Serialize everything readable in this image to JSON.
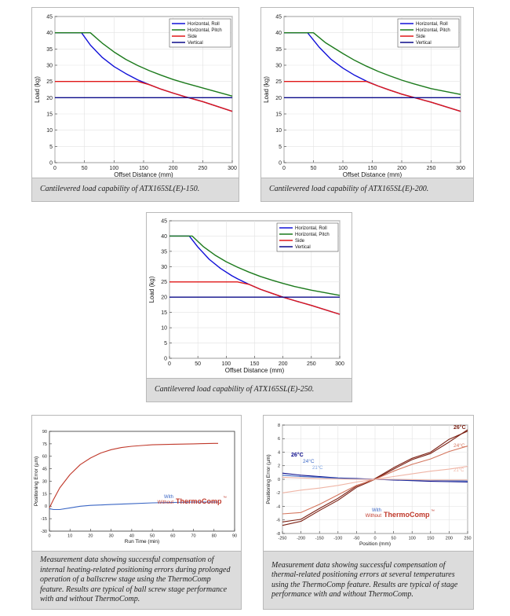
{
  "colors": {
    "horizontal_roll": "#1010d8",
    "horizontal_pitch": "#1c7a1c",
    "side": "#e01818",
    "vertical": "#0b0b8a",
    "thermo_with": "#3a66c4",
    "thermo_without": "#c0392b",
    "temp_26": "#7a1f12",
    "temp_24": "#d4765e",
    "temp_21": "#efb5a6"
  },
  "chart_data": [
    {
      "id": "c150",
      "type": "line",
      "caption": "Cantilevered load capability of ATX165SL(E)-150.",
      "xlabel": "Offset Distance (mm)",
      "ylabel": "Load (kg)",
      "xlim": [
        0,
        300
      ],
      "ylim": [
        0,
        45
      ],
      "xticks": [
        0,
        50,
        100,
        150,
        200,
        250,
        300
      ],
      "yticks": [
        0,
        5,
        10,
        15,
        20,
        25,
        30,
        35,
        40,
        45
      ],
      "grid": true,
      "legend_position": "top-right",
      "series": [
        {
          "name": "Horizontal, Roll",
          "color_key": "horizontal_roll",
          "x": [
            0,
            45,
            60,
            80,
            100,
            120,
            140,
            160,
            180,
            200,
            220,
            250,
            300
          ],
          "y": [
            40,
            40,
            36.2,
            32.4,
            29.6,
            27.4,
            25.5,
            24,
            22.6,
            21.4,
            20.3,
            18.8,
            15.8
          ]
        },
        {
          "name": "Horizontal, Pitch",
          "color_key": "horizontal_pitch",
          "x": [
            0,
            60,
            80,
            100,
            120,
            140,
            160,
            180,
            200,
            220,
            250,
            300
          ],
          "y": [
            40,
            40,
            36.8,
            34.1,
            31.8,
            29.9,
            28.3,
            26.9,
            25.6,
            24.5,
            23,
            20.5
          ]
        },
        {
          "name": "Side",
          "color_key": "side",
          "x": [
            0,
            140,
            160,
            180,
            200,
            220,
            250,
            300
          ],
          "y": [
            25,
            25,
            24,
            22.6,
            21.4,
            20.3,
            18.8,
            15.8
          ]
        },
        {
          "name": "Vertical",
          "color_key": "vertical",
          "x": [
            0,
            300
          ],
          "y": [
            20,
            20
          ]
        }
      ]
    },
    {
      "id": "c200",
      "type": "line",
      "caption": "Cantilevered load capability of ATX165SL(E)-200.",
      "xlabel": "Offset Distance (mm)",
      "ylabel": "Load (kg)",
      "xlim": [
        0,
        300
      ],
      "ylim": [
        0,
        45
      ],
      "xticks": [
        0,
        50,
        100,
        150,
        200,
        250,
        300
      ],
      "yticks": [
        0,
        5,
        10,
        15,
        20,
        25,
        30,
        35,
        40,
        45
      ],
      "grid": true,
      "legend_position": "top-right",
      "series": [
        {
          "name": "Horizontal, Roll",
          "color_key": "horizontal_roll",
          "x": [
            0,
            40,
            60,
            80,
            100,
            120,
            140,
            160,
            180,
            200,
            220,
            250,
            300
          ],
          "y": [
            40,
            40,
            35.5,
            31.8,
            29.1,
            26.9,
            25.1,
            23.6,
            22.3,
            21.1,
            20.1,
            18.6,
            15.8
          ]
        },
        {
          "name": "Horizontal, Pitch",
          "color_key": "horizontal_pitch",
          "x": [
            0,
            50,
            70,
            100,
            120,
            140,
            160,
            180,
            200,
            220,
            250,
            300
          ],
          "y": [
            40,
            40,
            37,
            33.6,
            31.5,
            29.7,
            28.1,
            26.7,
            25.4,
            24.3,
            22.8,
            21
          ]
        },
        {
          "name": "Side",
          "color_key": "side",
          "x": [
            0,
            140,
            160,
            180,
            200,
            220,
            250,
            300
          ],
          "y": [
            25,
            25,
            23.6,
            22.3,
            21.1,
            20.1,
            18.6,
            15.8
          ]
        },
        {
          "name": "Vertical",
          "color_key": "vertical",
          "x": [
            0,
            300
          ],
          "y": [
            20,
            20
          ]
        }
      ]
    },
    {
      "id": "c250",
      "type": "line",
      "caption": "Cantilevered load capability of ATX165SL(E)-250.",
      "xlabel": "Offset Distance (mm)",
      "ylabel": "Load (kg)",
      "xlim": [
        0,
        300
      ],
      "ylim": [
        0,
        45
      ],
      "xticks": [
        0,
        50,
        100,
        150,
        200,
        250,
        300
      ],
      "yticks": [
        0,
        5,
        10,
        15,
        20,
        25,
        30,
        35,
        40,
        45
      ],
      "grid": true,
      "legend_position": "top-right",
      "series": [
        {
          "name": "Horizontal, Roll",
          "color_key": "horizontal_roll",
          "x": [
            0,
            35,
            50,
            70,
            90,
            110,
            120,
            140,
            160,
            180,
            200,
            220,
            250,
            300
          ],
          "y": [
            40,
            40,
            36.4,
            32.4,
            29.4,
            27,
            26,
            24.2,
            22.6,
            21.3,
            20,
            18.9,
            17.3,
            14.4
          ]
        },
        {
          "name": "Horizontal, Pitch",
          "color_key": "horizontal_pitch",
          "x": [
            0,
            40,
            60,
            80,
            100,
            120,
            140,
            160,
            180,
            200,
            220,
            250,
            300
          ],
          "y": [
            40,
            40,
            36.5,
            33.8,
            31.6,
            29.8,
            28.2,
            26.8,
            25.6,
            24.5,
            23.5,
            22.3,
            20.6
          ]
        },
        {
          "name": "Side",
          "color_key": "side",
          "x": [
            0,
            120,
            140,
            160,
            180,
            200,
            220,
            250,
            300
          ],
          "y": [
            25,
            25,
            24.2,
            22.6,
            21.3,
            20,
            18.9,
            17.3,
            14.4
          ]
        },
        {
          "name": "Vertical",
          "color_key": "vertical",
          "x": [
            0,
            300
          ],
          "y": [
            20,
            20
          ]
        }
      ]
    },
    {
      "id": "runtime",
      "type": "line",
      "caption": "Measurement data showing successful compensation of internal heating-related positioning errors during prolonged operation of a ballscrew stage using the ThermoComp feature. Results are typical of ball screw stage performance with and without ThermoComp.",
      "xlabel": "Run Time (min)",
      "ylabel": "Positioning Error (µm)",
      "xlim": [
        0,
        90
      ],
      "ylim": [
        -30,
        90
      ],
      "xticks": [
        0,
        10,
        20,
        30,
        40,
        50,
        60,
        70,
        80,
        90
      ],
      "yticks": [
        -30,
        -15,
        0,
        15,
        30,
        45,
        60,
        75,
        90
      ],
      "grid": false,
      "annotations": {
        "with": "With",
        "without": "Without",
        "brand": "ThermoComp",
        "tm": "™"
      },
      "series": [
        {
          "name": "Without",
          "color_key": "thermo_without",
          "x": [
            0,
            2,
            5,
            10,
            15,
            20,
            25,
            30,
            35,
            40,
            45,
            50,
            60,
            70,
            80,
            82
          ],
          "y": [
            -2,
            8,
            22,
            38,
            50,
            58,
            64,
            68,
            70.5,
            72,
            73,
            73.8,
            74.5,
            75,
            75.5,
            75.5
          ]
        },
        {
          "name": "With",
          "color_key": "thermo_with",
          "x": [
            0,
            2,
            5,
            10,
            15,
            20,
            25,
            30,
            40,
            50,
            60,
            70,
            80,
            82
          ],
          "y": [
            -3,
            -4,
            -4,
            -2,
            0,
            1,
            1.5,
            2,
            3,
            4,
            4.5,
            5,
            5,
            5
          ]
        }
      ]
    },
    {
      "id": "position",
      "type": "line",
      "caption": "Measurement data showing successful compensation of thermal-related positioning errors at several temperatures using the ThermoComp feature. Results are typical of stage performance with and without ThermoComp.",
      "xlabel": "Position (mm)",
      "ylabel": "Positioning Error (µm)",
      "xlim": [
        -250,
        250
      ],
      "ylim": [
        -8,
        8
      ],
      "xticks": [
        -250,
        -200,
        -150,
        -100,
        -50,
        0,
        50,
        100,
        150,
        200,
        250
      ],
      "yticks": [
        -8,
        -6,
        -4,
        -2,
        0,
        2,
        4,
        6,
        8
      ],
      "grid": true,
      "labels": {
        "t26": "26°C",
        "t24": "24°C",
        "t21": "21°C",
        "with": "With",
        "without": "Without",
        "brand": "ThermoComp",
        "tm": "™"
      },
      "series": [
        {
          "name": "26°C",
          "color_key": "temp_26",
          "x": [
            -250,
            -200,
            -150,
            -100,
            -50,
            0,
            50,
            100,
            150,
            200,
            250
          ],
          "y": [
            -6.8,
            -6.2,
            -4.6,
            -3.1,
            -1.2,
            0,
            1.5,
            2.9,
            3.8,
            5.5,
            7.3
          ]
        },
        {
          "name": "26°C",
          "color_key": "temp_26",
          "x": [
            -250,
            -200,
            -150,
            -100,
            -50,
            0,
            50,
            100,
            150,
            200,
            250
          ],
          "y": [
            -6.3,
            -5.9,
            -4.3,
            -2.8,
            -1.0,
            0.1,
            1.7,
            3.1,
            4.0,
            5.9,
            7.1
          ]
        },
        {
          "name": "24°C",
          "color_key": "temp_24",
          "x": [
            -250,
            -200,
            -150,
            -100,
            -50,
            0,
            50,
            100,
            150,
            200,
            250
          ],
          "y": [
            -5.1,
            -4.9,
            -3.7,
            -2.3,
            -0.9,
            0,
            1.2,
            2.2,
            3.0,
            4.1,
            4.9
          ]
        },
        {
          "name": "21°C",
          "color_key": "temp_21",
          "x": [
            -250,
            -200,
            -150,
            -100,
            -50,
            0,
            50,
            100,
            150,
            200,
            250
          ],
          "y": [
            -2.0,
            -1.6,
            -1.3,
            -0.9,
            -0.4,
            0,
            0.4,
            0.8,
            1.2,
            1.5,
            1.9
          ]
        },
        {
          "name": "With 26°C",
          "color_key": "vertical",
          "x": [
            -250,
            -200,
            -150,
            -100,
            -50,
            0,
            50,
            100,
            150,
            200,
            250
          ],
          "y": [
            0.9,
            0.6,
            0.4,
            0.2,
            0.1,
            0,
            -0.1,
            -0.2,
            -0.3,
            -0.35,
            -0.4
          ]
        },
        {
          "name": "With 24°C",
          "color_key": "thermo_with",
          "x": [
            -250,
            -200,
            -150,
            -100,
            -50,
            0,
            50,
            100,
            150,
            200,
            250
          ],
          "y": [
            0.6,
            0.4,
            0.3,
            0.15,
            0.05,
            0,
            -0.05,
            -0.1,
            -0.15,
            -0.2,
            -0.25
          ]
        },
        {
          "name": "With 21°C",
          "color_key": "temp_21",
          "x": [
            -250,
            -200,
            -150,
            -100,
            -50,
            0,
            50,
            100,
            150,
            200,
            250
          ],
          "y": [
            0.3,
            0.2,
            0.1,
            0.05,
            0,
            0,
            0,
            -0.05,
            -0.1,
            -0.1,
            -0.1
          ]
        }
      ]
    }
  ]
}
